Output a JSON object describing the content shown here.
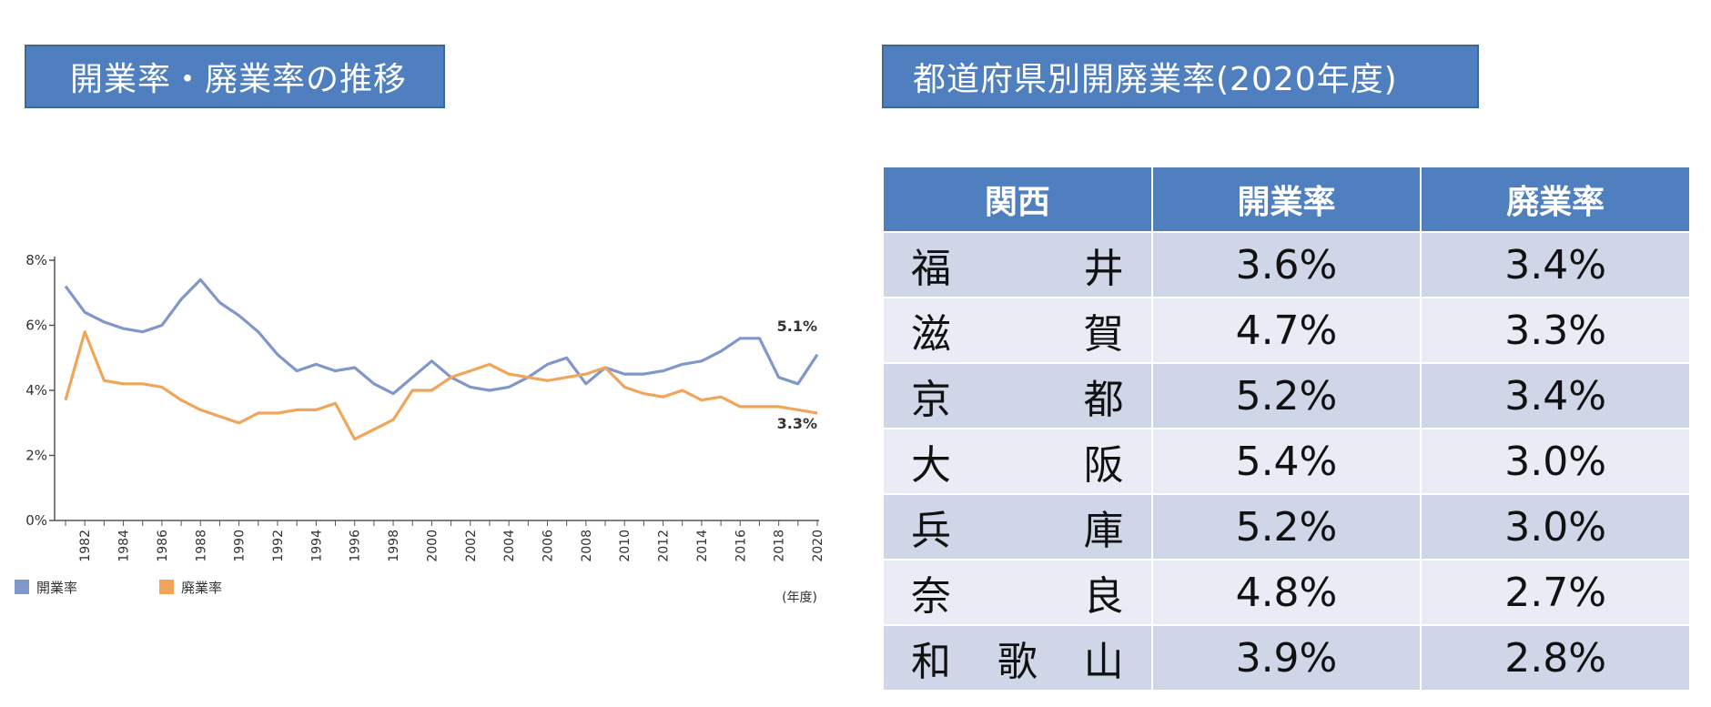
{
  "left_title": "開業率・廃業率の推移",
  "right_title": "都道府県別開廃業率(2020年度)",
  "chart_data": {
    "type": "line",
    "x": [
      1981,
      1982,
      1983,
      1984,
      1985,
      1986,
      1987,
      1988,
      1989,
      1990,
      1991,
      1992,
      1993,
      1994,
      1995,
      1996,
      1997,
      1998,
      1999,
      2000,
      2001,
      2002,
      2003,
      2004,
      2005,
      2006,
      2007,
      2008,
      2009,
      2010,
      2011,
      2012,
      2013,
      2014,
      2015,
      2016,
      2017,
      2018,
      2019,
      2020
    ],
    "series": [
      {
        "name": "開業率",
        "color": "#7f97c9",
        "values": [
          7.2,
          6.4,
          6.1,
          5.9,
          5.8,
          6.0,
          6.8,
          7.4,
          6.7,
          6.3,
          5.8,
          5.1,
          4.6,
          4.8,
          4.6,
          4.7,
          4.2,
          3.9,
          4.4,
          4.9,
          4.4,
          4.1,
          4.0,
          4.1,
          4.4,
          4.8,
          5.0,
          4.2,
          4.7,
          4.5,
          4.5,
          4.6,
          4.8,
          4.9,
          5.2,
          5.6,
          5.6,
          4.4,
          4.2,
          5.1
        ]
      },
      {
        "name": "廃業率",
        "color": "#f0a55a",
        "values": [
          3.7,
          5.8,
          4.3,
          4.2,
          4.2,
          4.1,
          3.7,
          3.4,
          3.2,
          3.0,
          3.3,
          3.3,
          3.4,
          3.4,
          3.6,
          2.5,
          2.8,
          3.1,
          4.0,
          4.0,
          4.4,
          4.6,
          4.8,
          4.5,
          4.4,
          4.3,
          4.4,
          4.5,
          4.7,
          4.1,
          3.9,
          3.8,
          4.0,
          3.7,
          3.8,
          3.5,
          3.5,
          3.5,
          3.4,
          3.3
        ]
      }
    ],
    "y_ticks": [
      "8%",
      "6%",
      "4%",
      "2%",
      "0%"
    ],
    "y_tick_values": [
      8,
      6,
      4,
      2,
      0
    ],
    "x_ticks": [
      "1982",
      "1984",
      "1986",
      "1988",
      "1990",
      "1992",
      "1994",
      "1996",
      "1998",
      "2000",
      "2002",
      "2004",
      "2006",
      "2008",
      "2010",
      "2012",
      "2014",
      "2016",
      "2018",
      "2020"
    ],
    "ylim": [
      0,
      8
    ],
    "xlim": [
      1981,
      2020
    ],
    "end_labels": [
      "5.1%",
      "3.3%"
    ],
    "xlabel": "(年度)",
    "legend": [
      "開業率",
      "廃業率"
    ],
    "legend_position": "bottom-left",
    "grid": false
  },
  "table": {
    "headers": [
      "関西",
      "開業率",
      "廃業率"
    ],
    "rows": [
      {
        "chars": [
          "福",
          "井"
        ],
        "open": "3.6%",
        "close": "3.4%"
      },
      {
        "chars": [
          "滋",
          "賀"
        ],
        "open": "4.7%",
        "close": "3.3%"
      },
      {
        "chars": [
          "京",
          "都"
        ],
        "open": "5.2%",
        "close": "3.4%"
      },
      {
        "chars": [
          "大",
          "阪"
        ],
        "open": "5.4%",
        "close": "3.0%"
      },
      {
        "chars": [
          "兵",
          "庫"
        ],
        "open": "5.2%",
        "close": "3.0%"
      },
      {
        "chars": [
          "奈",
          "良"
        ],
        "open": "4.8%",
        "close": "2.7%"
      },
      {
        "chars": [
          "和",
          "歌",
          "山"
        ],
        "open": "3.9%",
        "close": "2.8%"
      }
    ]
  },
  "colors": {
    "title_bg": "#4f7fbf",
    "header_bg": "#4f7fbf",
    "row_dark": "#cfd6e8",
    "row_light": "#e9ecf5"
  }
}
